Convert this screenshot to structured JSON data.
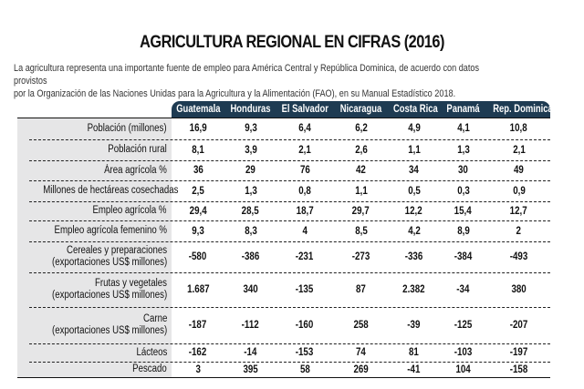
{
  "title": "AGRICULTURA REGIONAL EN CIFRAS (2016)",
  "intro": [
    "La agricultura representa una importante fuente de empleo para América Central y República Dominica, de acuerdo con datos provistos",
    "por la Organización de las Naciones Unidas para la Agricultura y la Alimentación (FAO), en su Manual Estadístico 2018."
  ],
  "colors": {
    "header_bg": "#1e3b52",
    "label_bg": "#e6e6e7"
  },
  "table": {
    "columns": [
      "Guatemala",
      "Honduras",
      "El Salvador",
      "Nicaragua",
      "Costa Rica",
      "Panamá",
      "Rep. Dominicana"
    ],
    "rows": [
      {
        "label": [
          "Población (millones)"
        ],
        "values": [
          "16,9",
          "9,3",
          "6,4",
          "6,2",
          "4,9",
          "4,1",
          "10,8"
        ]
      },
      {
        "label": [
          "Población rural"
        ],
        "values": [
          "8,1",
          "3,9",
          "2,1",
          "2,6",
          "1,1",
          "1,3",
          "2,1"
        ]
      },
      {
        "label": [
          "Área agrícola %"
        ],
        "values": [
          "36",
          "29",
          "76",
          "42",
          "34",
          "30",
          "49"
        ]
      },
      {
        "label": [
          "Millones de hectáreas cosechadas"
        ],
        "values": [
          "2,5",
          "1,3",
          "0,8",
          "1,1",
          "0,5",
          "0,3",
          "0,9"
        ]
      },
      {
        "label": [
          "Empleo agrícola %"
        ],
        "values": [
          "29,4",
          "28,5",
          "18,7",
          "29,7",
          "12,2",
          "15,4",
          "12,7"
        ]
      },
      {
        "label": [
          "Empleo agrícola femenino %"
        ],
        "values": [
          "9,3",
          "8,3",
          "4",
          "8,5",
          "4,2",
          "8,9",
          "2"
        ]
      },
      {
        "label": [
          "Cereales y preparaciones",
          "(exportaciones US$ millones)"
        ],
        "values": [
          "-580",
          "-386",
          "-231",
          "-273",
          "-336",
          "-384",
          "-493"
        ]
      },
      {
        "label": [
          "Frutas y vegetales",
          "(exportaciones US$ millones)"
        ],
        "values": [
          "1.687",
          "340",
          "-135",
          "87",
          "2.382",
          "-34",
          "380"
        ]
      },
      {
        "label": [
          "Carne",
          "(exportaciones US$ millones)"
        ],
        "values": [
          "-187",
          "-112",
          "-160",
          "258",
          "-39",
          "-125",
          "-207"
        ]
      },
      {
        "label": [
          "Lácteos"
        ],
        "values": [
          "-162",
          "-14",
          "-153",
          "74",
          "81",
          "-103",
          "-197"
        ]
      },
      {
        "label": [
          "Pescado"
        ],
        "values": [
          "3",
          "395",
          "58",
          "269",
          "-41",
          "104",
          "-158"
        ]
      }
    ]
  }
}
